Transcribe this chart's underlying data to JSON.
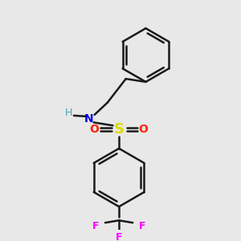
{
  "bg_color": "#e8e8e8",
  "bond_color": "#1a1a1a",
  "bond_width": 1.8,
  "atoms": {
    "N": {
      "color": "#0000dd",
      "fontsize": 10
    },
    "H": {
      "color": "#44aaaa",
      "fontsize": 9
    },
    "S": {
      "color": "#dddd00",
      "fontsize": 13
    },
    "O": {
      "color": "#ff2200",
      "fontsize": 10
    },
    "F": {
      "color": "#ff00ff",
      "fontsize": 9
    }
  }
}
